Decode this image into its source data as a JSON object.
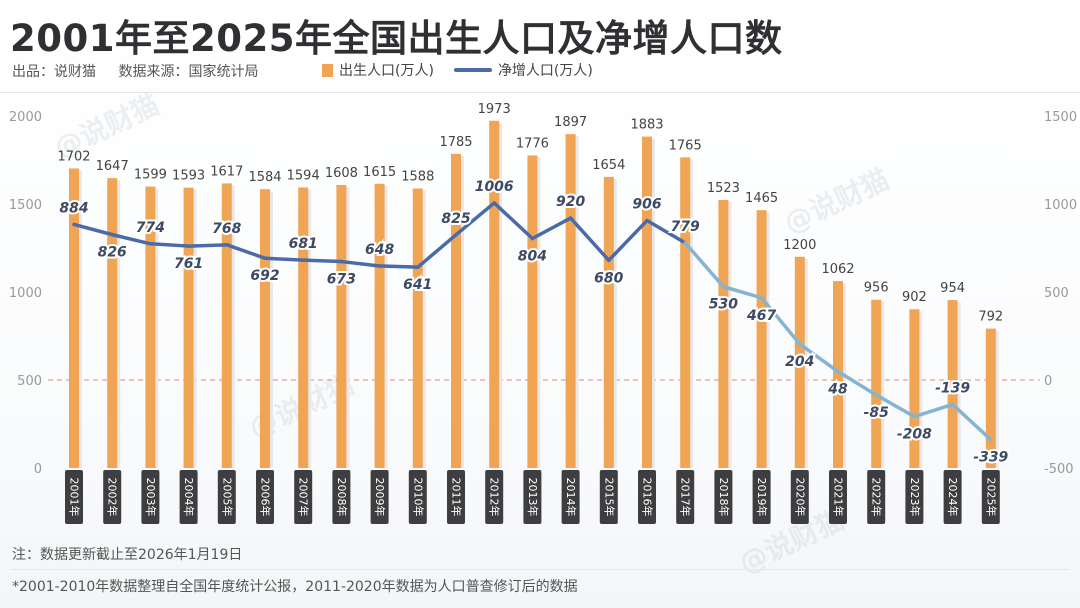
{
  "title": "2001年至2025年全国出生人口及净增人口数",
  "meta": {
    "source_author": "出品：说财猫",
    "source_data": "数据来源：国家统计局"
  },
  "legend": {
    "births": "出生人口(万人)",
    "net": "净增人口(万人)"
  },
  "watermark": "@说财猫",
  "notes": {
    "note1": "注：数据更新截止至2026年1月19日",
    "note2": "*2001-2010年数据整理自全国年度统计公报，2011-2020年数据为人口普查修订后的数据"
  },
  "colors": {
    "bar": "#f0a555",
    "bar_shadow": "#e8e8e8",
    "line_pos": "#4a6aa8",
    "line_neg": "#84b3d3",
    "zero_line": "#e06666",
    "axis_text": "#999999"
  },
  "chart_data": {
    "type": "bar+line",
    "title": "2001年至2025年全国出生人口及净增人口数",
    "categories": [
      "2001年",
      "2002年",
      "2003年",
      "2004年",
      "2005年",
      "2006年",
      "2007年",
      "2008年",
      "2009年",
      "2010年",
      "2011年",
      "2012年",
      "2013年",
      "2014年",
      "2015年",
      "2016年",
      "2017年",
      "2018年",
      "2019年",
      "2020年",
      "2021年",
      "2022年",
      "2023年",
      "2024年",
      "2025年"
    ],
    "series": [
      {
        "name": "出生人口(万人)",
        "type": "bar",
        "axis": "left",
        "values": [
          1702,
          1647,
          1599,
          1593,
          1617,
          1584,
          1594,
          1608,
          1615,
          1588,
          1785,
          1973,
          1776,
          1897,
          1654,
          1883,
          1765,
          1523,
          1465,
          1200,
          1062,
          956,
          902,
          954,
          792
        ]
      },
      {
        "name": "净增人口(万人)",
        "type": "line",
        "axis": "right",
        "values": [
          884,
          826,
          774,
          761,
          768,
          692,
          681,
          673,
          648,
          641,
          825,
          1006,
          804,
          920,
          680,
          906,
          779,
          530,
          467,
          204,
          48,
          -85,
          -208,
          -139,
          -339
        ]
      }
    ],
    "left_axis": {
      "ylim": [
        0,
        2000
      ],
      "ticks": [
        "0",
        "500",
        "1000",
        "1500",
        "2000"
      ]
    },
    "right_axis": {
      "ylim": [
        -500,
        1500
      ],
      "ticks": [
        "-500",
        "0",
        "500",
        "1000",
        "1500"
      ]
    }
  }
}
